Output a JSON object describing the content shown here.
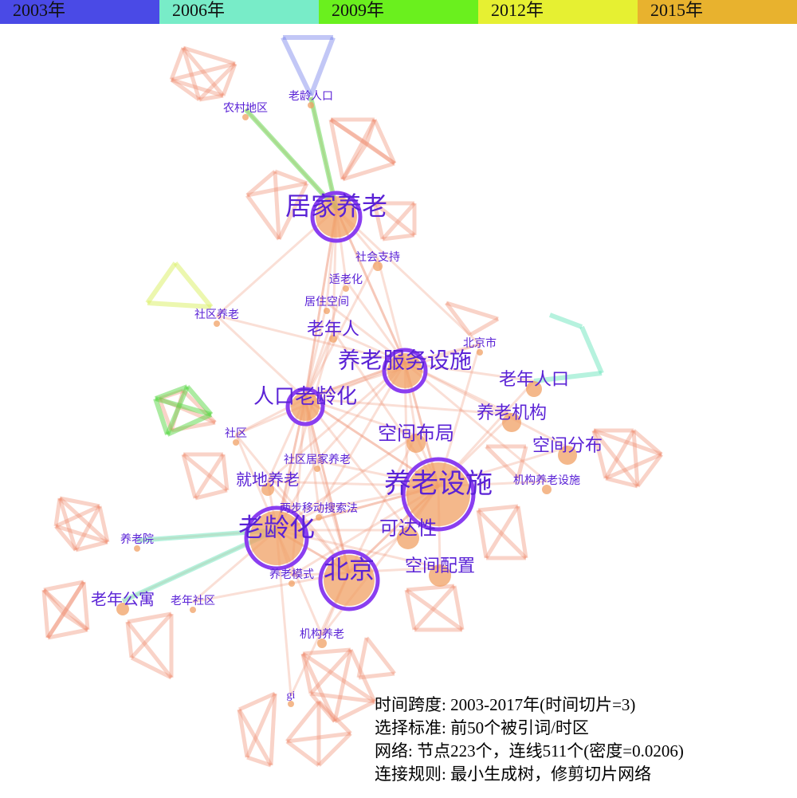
{
  "timeline": [
    "2003年",
    "2006年",
    "2009年",
    "2012年",
    "2015年"
  ],
  "nodes": [
    {
      "label": "老龄人口"
    },
    {
      "label": "农村地区"
    },
    {
      "label": "居家养老"
    },
    {
      "label": "社会支持"
    },
    {
      "label": "适老化"
    },
    {
      "label": "居住空间"
    },
    {
      "label": "社区养老"
    },
    {
      "label": "老年人"
    },
    {
      "label": "北京市"
    },
    {
      "label": "养老服务设施"
    },
    {
      "label": "老年人口"
    },
    {
      "label": "人口老龄化"
    },
    {
      "label": "养老机构"
    },
    {
      "label": "空间布局"
    },
    {
      "label": "社区"
    },
    {
      "label": "空间分布"
    },
    {
      "label": "社区居家养老"
    },
    {
      "label": "就地养老"
    },
    {
      "label": "养老设施"
    },
    {
      "label": "机构养老设施"
    },
    {
      "label": "两步移动搜索法"
    },
    {
      "label": "老龄化"
    },
    {
      "label": "可达性"
    },
    {
      "label": "养老院"
    },
    {
      "label": "空间配置"
    },
    {
      "label": "北京"
    },
    {
      "label": "养老模式"
    },
    {
      "label": "老年公寓"
    },
    {
      "label": "老年社区"
    },
    {
      "label": "机构养老"
    },
    {
      "label": "gi"
    }
  ],
  "info": [
    "时间跨度: 2003-2017年(时间切片=3)",
    "选择标准: 前50个被引词/时区",
    "网络: 节点223个，连线511个(密度=0.0206)",
    "连接规则: 最小生成树，修剪切片网络"
  ]
}
